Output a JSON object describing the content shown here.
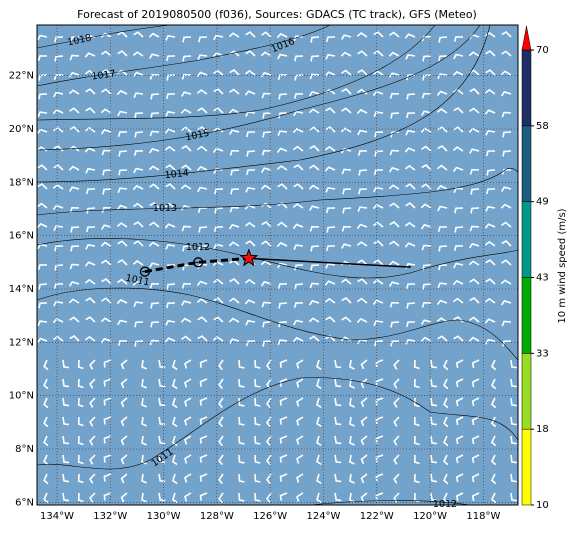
{
  "chart_data": {
    "type": "map",
    "title": "Forecast of 2019080500 (f036), Sources: GDACS (TC track), GFS (Meteo)",
    "xlim": [
      -134.75,
      -116.7
    ],
    "ylim": [
      5.9,
      23.9
    ],
    "xticks": [
      {
        "value": -134,
        "label": "134°W"
      },
      {
        "value": -132,
        "label": "132°W"
      },
      {
        "value": -130,
        "label": "130°W"
      },
      {
        "value": -128,
        "label": "128°W"
      },
      {
        "value": -126,
        "label": "126°W"
      },
      {
        "value": -124,
        "label": "124°W"
      },
      {
        "value": -122,
        "label": "122°W"
      },
      {
        "value": -120,
        "label": "120°W"
      },
      {
        "value": -118,
        "label": "118°W"
      }
    ],
    "yticks": [
      {
        "value": 6,
        "label": "6°N"
      },
      {
        "value": 8,
        "label": "8°N"
      },
      {
        "value": 10,
        "label": "10°N"
      },
      {
        "value": 12,
        "label": "12°N"
      },
      {
        "value": 14,
        "label": "14°N"
      },
      {
        "value": 16,
        "label": "16°N"
      },
      {
        "value": 18,
        "label": "18°N"
      },
      {
        "value": 20,
        "label": "20°N"
      },
      {
        "value": 22,
        "label": "22°N"
      }
    ],
    "grid": true,
    "ocean_color": "#73a3cb",
    "contour_labels": [
      "1018",
      "1017",
      "1016",
      "1015",
      "1014",
      "1013",
      "1012",
      "1011",
      "1011",
      "1012"
    ],
    "track": {
      "lon": [
        -130.7,
        -128.7,
        -126.8,
        -120.72
      ],
      "lat": [
        14.65,
        15.0,
        15.15,
        14.82
      ]
    },
    "colorbar": {
      "label": "10 m wind speed (m/s)",
      "levels": [
        10,
        18,
        33,
        43,
        49,
        58,
        70
      ],
      "colors": [
        "#ffff00",
        "#99dd22",
        "#00aa00",
        "#009988",
        "#1a5e80",
        "#1f2f66"
      ],
      "extend_color": "#ff0000"
    }
  }
}
